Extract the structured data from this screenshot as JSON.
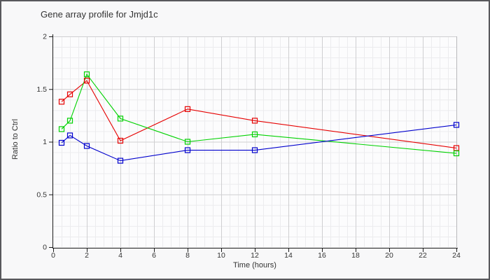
{
  "window": {
    "background": "#f8f8f9",
    "border_color": "#58585c",
    "plot_background": "#fcfcfd",
    "axis_color": "#1a1a1a",
    "major_grid_color": "#cfcfd1",
    "minor_grid_color": "#ececee",
    "right_border_color": "#b9b9bc",
    "text_color": "#333333"
  },
  "chart_data": {
    "type": "line",
    "title": "Gene array profile for Jmjd1c",
    "xlabel": "Time (hours)",
    "ylabel": "Ratio to Ctrl",
    "x": [
      0.5,
      1,
      2,
      4,
      8,
      12,
      24
    ],
    "series": [
      {
        "name": "red-series",
        "color": "#e60000",
        "values": [
          1.38,
          1.45,
          1.58,
          1.01,
          1.31,
          1.2,
          0.94
        ]
      },
      {
        "name": "green-series",
        "color": "#00d200",
        "values": [
          1.12,
          1.2,
          1.64,
          1.22,
          1.0,
          1.07,
          0.89
        ]
      },
      {
        "name": "blue-series",
        "color": "#0000cd",
        "values": [
          0.99,
          1.06,
          0.96,
          0.82,
          0.92,
          0.92,
          1.16
        ]
      }
    ],
    "xlim": [
      0,
      24
    ],
    "ylim": [
      0,
      2
    ],
    "x_ticks": [
      0,
      2,
      4,
      6,
      8,
      10,
      12,
      14,
      16,
      18,
      20,
      22,
      24
    ],
    "y_ticks": [
      0,
      0.5,
      1,
      1.5,
      2
    ],
    "x_minor_step": 0.5,
    "y_minor_step": 0.1,
    "grid": "major+minor",
    "legend": "none",
    "marker": "open-square"
  }
}
